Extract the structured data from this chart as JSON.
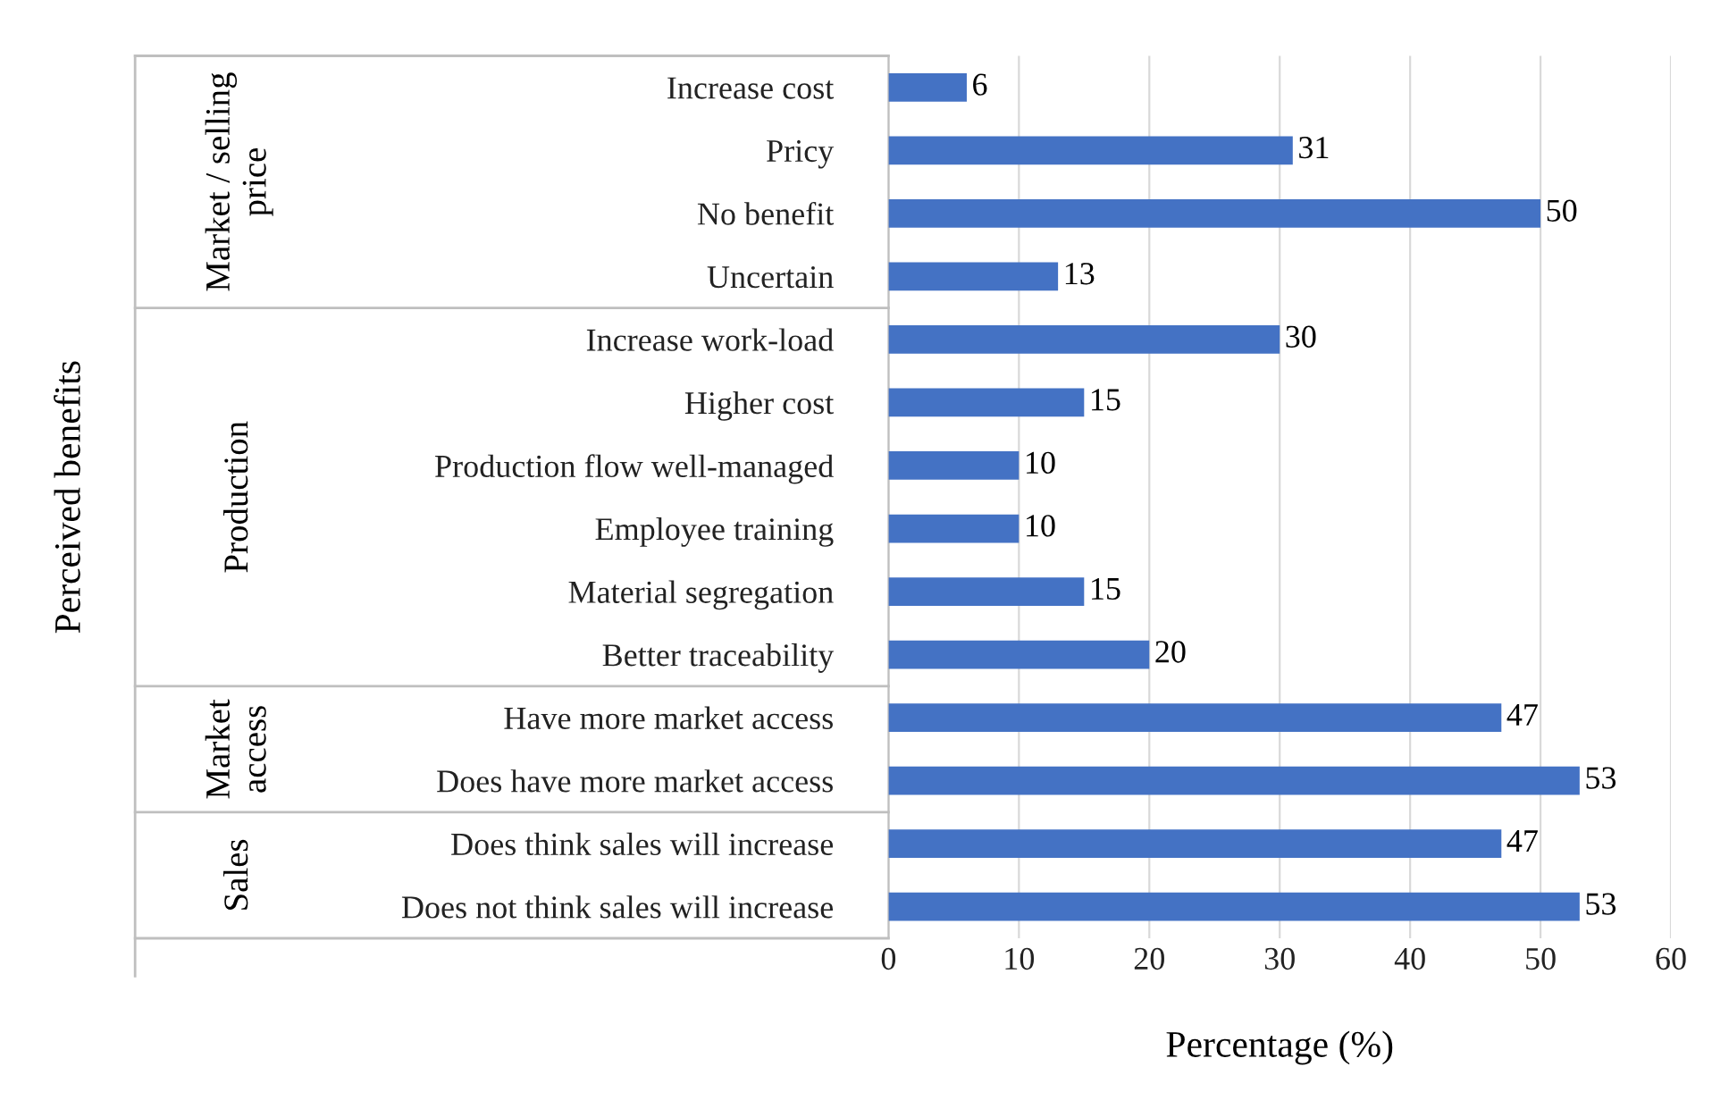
{
  "chart_data": {
    "type": "bar",
    "orientation": "horizontal",
    "xlabel": "Percentage (%)",
    "categories": [
      "Increase cost",
      "Pricy",
      "No benefit",
      "Uncertain",
      "Increase work-load",
      "Higher cost",
      "Production flow well-managed",
      "Employee training",
      "Material segregation",
      "Better traceability",
      "Have more market access",
      "Does have more market access",
      "Does think sales will increase",
      "Does not think sales will increase"
    ],
    "values": [
      6,
      31,
      50,
      13,
      30,
      15,
      10,
      10,
      15,
      20,
      47,
      53,
      47,
      53
    ],
    "color": "#4472c4",
    "xlim": [
      0,
      60
    ],
    "xticks": [
      0,
      10,
      20,
      30,
      40,
      50,
      60
    ],
    "grid": "x",
    "data_labels": true,
    "annotations": [
      "Market / selling\nprice",
      "Production",
      "Market\naccess",
      "Sales",
      "Perceived benefits"
    ]
  }
}
